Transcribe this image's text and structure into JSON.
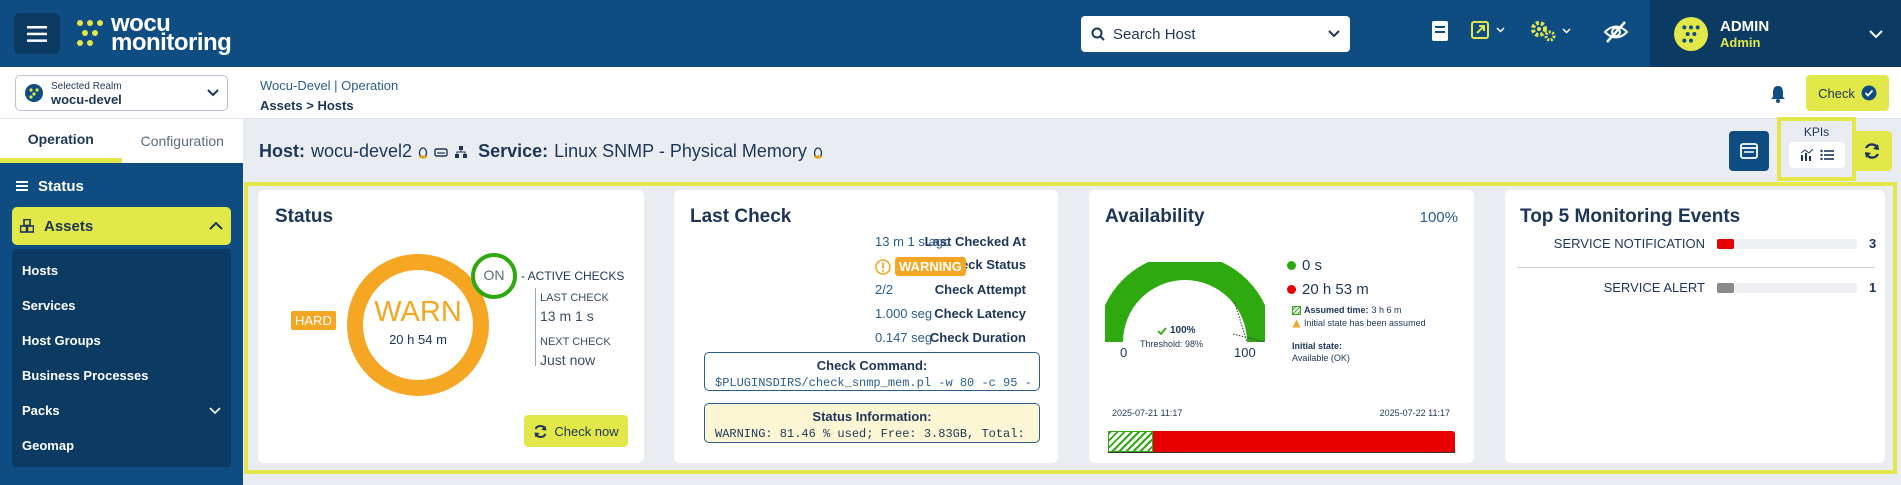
{
  "app": {
    "logo_line1": "wocu",
    "logo_line2": "monitoring"
  },
  "search": {
    "label": "Search Host"
  },
  "user": {
    "name": "ADMIN",
    "role": "Admin"
  },
  "realm": {
    "caption": "Selected Realm",
    "value": "wocu-devel"
  },
  "breadcrumb": {
    "top": "Wocu-Devel | Operation",
    "bottom": "Assets > Hosts"
  },
  "header": {
    "check_label": "Check"
  },
  "sidebar": {
    "tabs": [
      "Operation",
      "Configuration"
    ],
    "status_label": "Status",
    "assets_label": "Assets",
    "items": [
      "Hosts",
      "Services",
      "Host Groups",
      "Business Processes",
      "Packs",
      "Geomap"
    ]
  },
  "title": {
    "host_key": "Host:",
    "host_value": "wocu-devel2",
    "service_key": "Service:",
    "service_value": "Linux SNMP - Physical Memory"
  },
  "kpis": {
    "label": "KPIs"
  },
  "status_card": {
    "title": "Status",
    "hard": "HARD",
    "state": "WARN",
    "duration": "20 h 54 m",
    "on": "ON",
    "active_checks": "- ACTIVE CHECKS",
    "last_check_label": "LAST CHECK",
    "last_check_value": "13 m 1 s",
    "next_check_label": "NEXT CHECK",
    "next_check_value": "Just now",
    "check_now": "Check now"
  },
  "last_check": {
    "title": "Last Check",
    "rows": [
      {
        "k": "Last Checked At",
        "v": "13 m 1 s ago"
      },
      {
        "k": "Check Status",
        "v": "WARNING"
      },
      {
        "k": "Check Attempt",
        "v": "2/2"
      },
      {
        "k": "Check Latency",
        "v": "1.000 seg"
      },
      {
        "k": "Check Duration",
        "v": "0.147 seg"
      }
    ],
    "command_title": "Check Command:",
    "command_text": "$PLUGINSDIRS/check_snmp_mem.pl -w 80 -c 95 -",
    "info_title": "Status Information:",
    "info_text": "WARNING: 81.46 % used; Free: 3.83GB, Total:"
  },
  "availability": {
    "title": "Availability",
    "percent": "100%",
    "gauge_value": "100%",
    "gauge_fraction": 1.0,
    "threshold": "Threshold: 98%",
    "min": "0",
    "max": "100",
    "legend_green": "0 s",
    "legend_red": "20 h 53 m",
    "assumed_label": "Assumed time:",
    "assumed_value": "3 h 6 m",
    "initial_note": "Initial state has been assumed",
    "initial_state_label": "Initial state:",
    "initial_state_value": "Available (OK)",
    "date_start": "2025-07-21 11:17",
    "date_end": "2025-07-22 11:17",
    "colors": {
      "ok": "#2eaa10",
      "critical": "#e80000"
    }
  },
  "events": {
    "title": "Top 5 Monitoring Events",
    "rows": [
      {
        "label": "SERVICE NOTIFICATION",
        "count": "3",
        "fraction": 0.12,
        "color": "#e80000"
      },
      {
        "label": "SERVICE ALERT",
        "count": "1",
        "fraction": 0.12,
        "color": "#8a8a8a"
      }
    ]
  }
}
